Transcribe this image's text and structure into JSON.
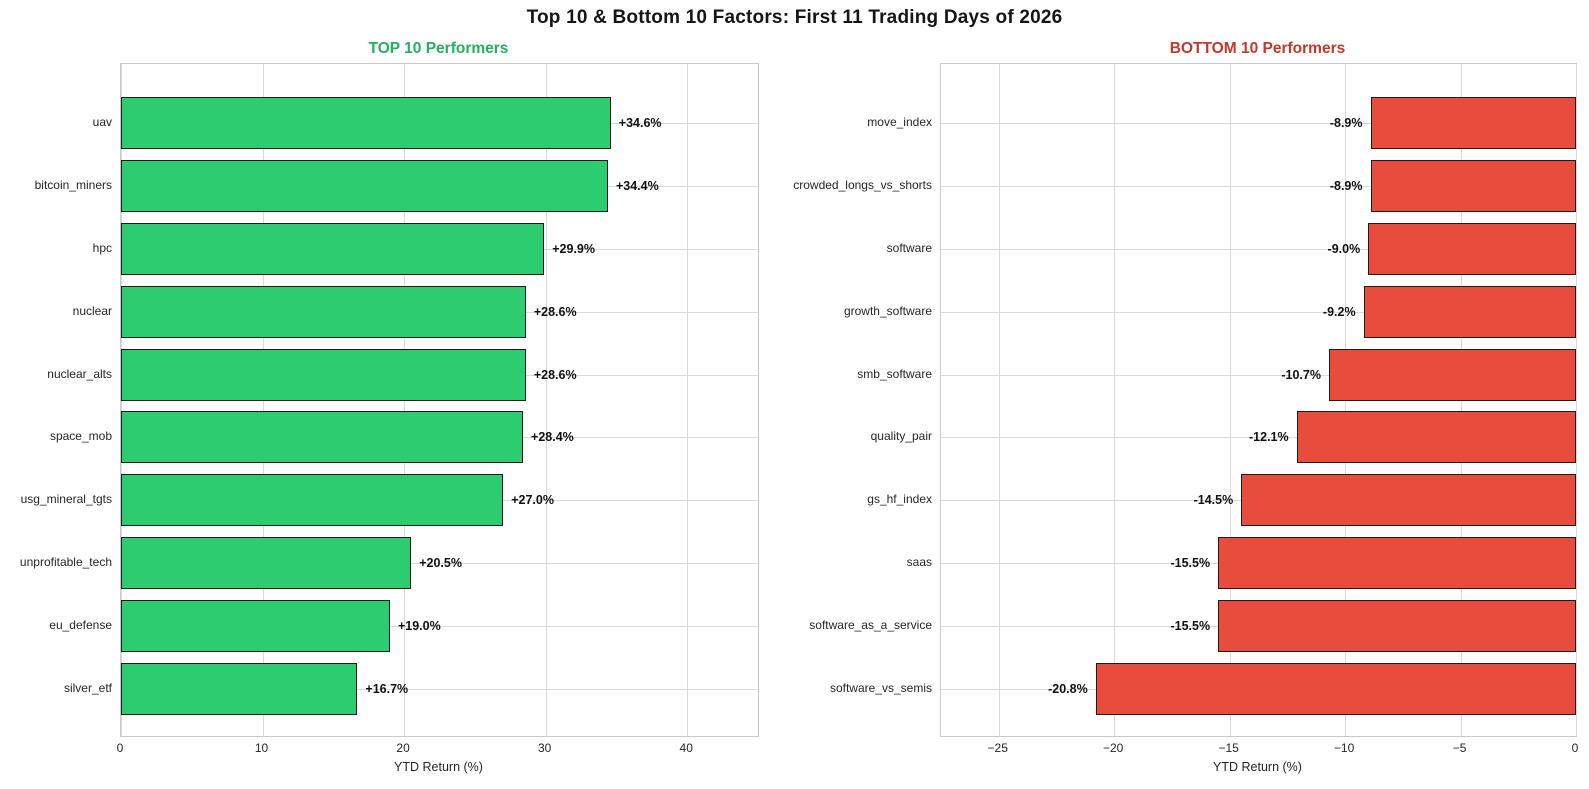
{
  "title": "Top 10 & Bottom 10 Factors: First 11 Trading Days of 2026",
  "chart_data": [
    {
      "type": "bar",
      "orientation": "horizontal",
      "title": "TOP 10 Performers",
      "title_color": "#27ae60",
      "bar_color": "#2ecc71",
      "bar_edge_color": "#1c1c1c",
      "grid": true,
      "categories": [
        "uav",
        "bitcoin_miners",
        "hpc",
        "nuclear",
        "nuclear_alts",
        "space_mob",
        "usg_mineral_tgts",
        "unprofitable_tech",
        "eu_defense",
        "silver_etf"
      ],
      "values": [
        34.6,
        34.4,
        29.9,
        28.6,
        28.6,
        28.4,
        27.0,
        20.5,
        19.0,
        16.7
      ],
      "labels": [
        "+34.6%",
        "+34.4%",
        "+29.9%",
        "+28.6%",
        "+28.6%",
        "+28.4%",
        "+27.0%",
        "+20.5%",
        "+19.0%",
        "+16.7%"
      ],
      "xlabel": "YTD Return (%)",
      "xlim": [
        0,
        45
      ],
      "xticks": [
        0,
        10,
        20,
        30,
        40
      ],
      "xtick_labels": [
        "0",
        "10",
        "20",
        "30",
        "40"
      ]
    },
    {
      "type": "bar",
      "orientation": "horizontal",
      "title": "BOTTOM 10 Performers",
      "title_color": "#c0392b",
      "bar_color": "#e74c3c",
      "bar_edge_color": "#1c1c1c",
      "grid": true,
      "categories": [
        "move_index",
        "crowded_longs_vs_shorts",
        "software",
        "growth_software",
        "smb_software",
        "quality_pair",
        "gs_hf_index",
        "saas",
        "software_as_a_service",
        "software_vs_semis"
      ],
      "values": [
        -8.9,
        -8.9,
        -9.0,
        -9.2,
        -10.7,
        -12.1,
        -14.5,
        -15.5,
        -15.5,
        -20.8
      ],
      "labels": [
        "-8.9%",
        "-8.9%",
        "-9.0%",
        "-9.2%",
        "-10.7%",
        "-12.1%",
        "-14.5%",
        "-15.5%",
        "-15.5%",
        "-20.8%"
      ],
      "xlabel": "YTD Return (%)",
      "xlim": [
        -27.5,
        0
      ],
      "xticks": [
        -25,
        -20,
        -15,
        -10,
        -5,
        0
      ],
      "xtick_labels": [
        "−25",
        "−20",
        "−15",
        "−10",
        "−5",
        "0"
      ]
    }
  ]
}
